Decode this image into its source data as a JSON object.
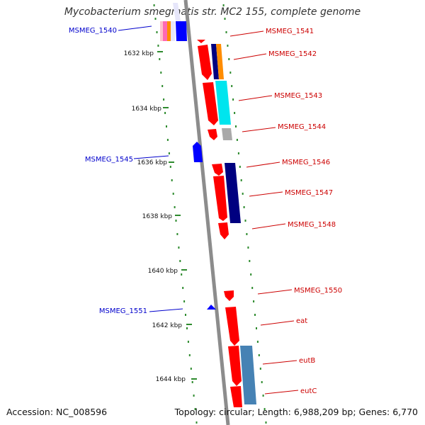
{
  "title": "Mycobacterium smegmatis str. MC2 155, complete genome",
  "footer": {
    "accession": "Accession: NC_008596",
    "summary": "Topology: circular; Length: 6,988,209 bp; Genes: 6,770"
  },
  "colors": {
    "axis": "#8c8c8c",
    "tick_dots": "#2e8b2e",
    "forward_label": "#0000cc",
    "reverse_label": "#cc0000",
    "forward_gene": "#0000ff",
    "reverse_gene": "#ff0000"
  },
  "ticks": [
    "1632 kbp",
    "1634 kbp",
    "1636 kbp",
    "1638 kbp",
    "1640 kbp",
    "1642 kbp",
    "1644 kbp"
  ],
  "genes_forward": [
    "MSMEG_1540",
    "MSMEG_1545",
    "MSMEG_1551"
  ],
  "genes_reverse": [
    "MSMEG_1541",
    "MSMEG_1542",
    "MSMEG_1543",
    "MSMEG_1544",
    "MSMEG_1546",
    "MSMEG_1547",
    "MSMEG_1548",
    "MSMEG_1550",
    "eat",
    "eutB",
    "eutC"
  ],
  "category_colors": [
    "#ff69b4",
    "#ff8c00",
    "#0000ff",
    "#000080",
    "#00e5ee",
    "#a9a9a9",
    "#4682b4",
    "#e6e6fa",
    "#ffc0cb"
  ]
}
